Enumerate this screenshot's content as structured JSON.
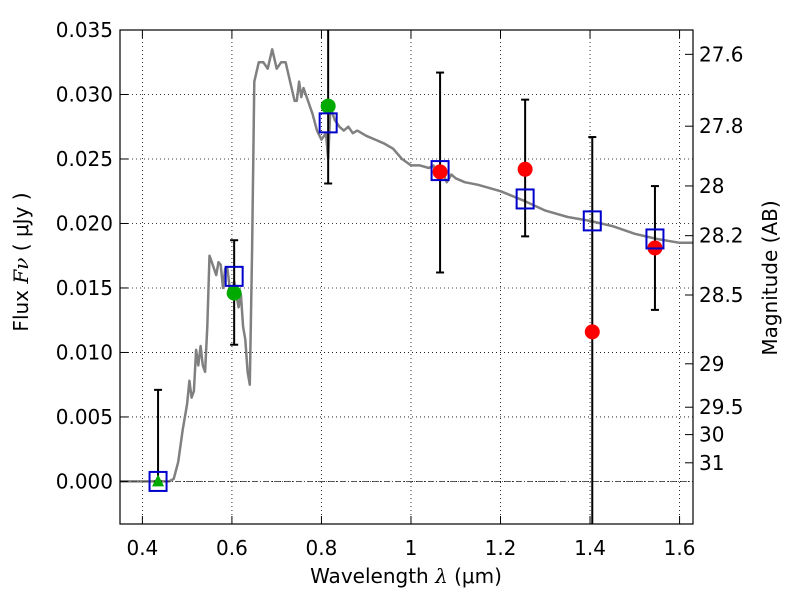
{
  "chart_data": {
    "type": "scatter",
    "xlabel": {
      "text": "Wavelength",
      "symbol": "λ",
      "unit": "(μm)"
    },
    "ylabel": {
      "text": "Flux",
      "symbol": "Fν",
      "unit": "( μJy )"
    },
    "y2label": "Magnitude (AB)",
    "xlim": [
      0.35,
      1.63
    ],
    "ylim": [
      -0.0033,
      0.035
    ],
    "grid": true,
    "x_ticks": [
      0.4,
      0.6,
      0.8,
      1.0,
      1.2,
      1.4,
      1.6
    ],
    "x_tick_labels": [
      "0.4",
      "0.6",
      "0.8",
      "1",
      "1.2",
      "1.4",
      "1.6"
    ],
    "y_ticks": [
      0.0,
      0.005,
      0.01,
      0.015,
      0.02,
      0.025,
      0.03,
      0.035
    ],
    "y_tick_labels": [
      "0.000",
      "0.005",
      "0.010",
      "0.015",
      "0.020",
      "0.025",
      "0.030",
      "0.035"
    ],
    "y2_ticks": [
      {
        "label": "27.6",
        "value": 27.6
      },
      {
        "label": "27.8",
        "value": 27.8
      },
      {
        "label": "28",
        "value": 28.0
      },
      {
        "label": "28.2",
        "value": 28.2
      },
      {
        "label": "28.5",
        "value": 28.5
      },
      {
        "label": "29",
        "value": 29.0
      },
      {
        "label": "29.5",
        "value": 29.5
      },
      {
        "label": "30",
        "value": 30.0
      },
      {
        "label": "31",
        "value": 31.0
      }
    ],
    "template_spectrum": {
      "color": "#808080",
      "x": [
        0.35,
        0.46,
        0.47,
        0.48,
        0.49,
        0.5,
        0.505,
        0.51,
        0.515,
        0.52,
        0.525,
        0.53,
        0.535,
        0.54,
        0.545,
        0.55,
        0.555,
        0.56,
        0.565,
        0.57,
        0.575,
        0.58,
        0.585,
        0.59,
        0.595,
        0.6,
        0.605,
        0.61,
        0.615,
        0.62,
        0.625,
        0.63,
        0.635,
        0.64,
        0.645,
        0.65,
        0.66,
        0.67,
        0.68,
        0.69,
        0.7,
        0.71,
        0.72,
        0.73,
        0.74,
        0.745,
        0.75,
        0.755,
        0.76,
        0.77,
        0.78,
        0.79,
        0.8,
        0.81,
        0.815,
        0.82,
        0.83,
        0.84,
        0.85,
        0.86,
        0.87,
        0.88,
        0.9,
        0.92,
        0.94,
        0.96,
        0.98,
        1.0,
        1.02,
        1.04,
        1.05,
        1.06,
        1.07,
        1.08,
        1.09,
        1.1,
        1.12,
        1.15,
        1.2,
        1.25,
        1.3,
        1.35,
        1.4,
        1.45,
        1.5,
        1.55,
        1.6,
        1.63
      ],
      "y": [
        0.0,
        0.0,
        0.0002,
        0.0015,
        0.004,
        0.006,
        0.0078,
        0.0065,
        0.007,
        0.0102,
        0.009,
        0.0105,
        0.009,
        0.0085,
        0.012,
        0.0175,
        0.017,
        0.0165,
        0.016,
        0.017,
        0.0168,
        0.015,
        0.0165,
        0.0165,
        0.015,
        0.0145,
        0.0155,
        0.0145,
        0.0135,
        0.0145,
        0.012,
        0.011,
        0.0085,
        0.0075,
        0.018,
        0.031,
        0.0325,
        0.0325,
        0.032,
        0.0335,
        0.032,
        0.0325,
        0.0325,
        0.031,
        0.0295,
        0.0295,
        0.031,
        0.0298,
        0.0305,
        0.0295,
        0.0285,
        0.0272,
        0.0265,
        0.027,
        0.025,
        0.029,
        0.028,
        0.0275,
        0.0272,
        0.0275,
        0.027,
        0.0272,
        0.0268,
        0.0265,
        0.0262,
        0.0258,
        0.025,
        0.0245,
        0.0245,
        0.0243,
        0.0245,
        0.0235,
        0.024,
        0.0232,
        0.0238,
        0.0235,
        0.0232,
        0.023,
        0.0225,
        0.0218,
        0.021,
        0.0205,
        0.0202,
        0.0198,
        0.0192,
        0.0188,
        0.0185,
        0.0185
      ]
    },
    "model_points": {
      "marker": "open-square",
      "color": "#0000cc",
      "x": [
        0.435,
        0.605,
        0.815,
        1.065,
        1.255,
        1.405,
        1.545
      ],
      "y": [
        0.0,
        0.0159,
        0.0278,
        0.0241,
        0.0219,
        0.0202,
        0.0188
      ]
    },
    "observed_points": [
      {
        "x": 0.435,
        "y": 0.0,
        "marker": "triangle",
        "color": "#00aa00",
        "yerr_low": 0.0,
        "yerr_high": 0.0071
      },
      {
        "x": 0.605,
        "y": 0.0146,
        "marker": "circle",
        "color": "#00aa00",
        "yerr_low": 0.0106,
        "yerr_high": 0.0187
      },
      {
        "x": 0.815,
        "y": 0.0291,
        "marker": "circle",
        "color": "#00aa00",
        "yerr_low": 0.0231,
        "yerr_high": 0.035
      },
      {
        "x": 1.065,
        "y": 0.024,
        "marker": "circle",
        "color": "#ff0000",
        "yerr_low": 0.0162,
        "yerr_high": 0.0317
      },
      {
        "x": 1.255,
        "y": 0.0242,
        "marker": "circle",
        "color": "#ff0000",
        "yerr_low": 0.019,
        "yerr_high": 0.0296
      },
      {
        "x": 1.405,
        "y": 0.0116,
        "marker": "circle",
        "color": "#ff0000",
        "yerr_low": -0.0033,
        "yerr_high": 0.0267
      },
      {
        "x": 1.545,
        "y": 0.0181,
        "marker": "circle",
        "color": "#ff0000",
        "yerr_low": 0.0133,
        "yerr_high": 0.0229
      }
    ]
  }
}
